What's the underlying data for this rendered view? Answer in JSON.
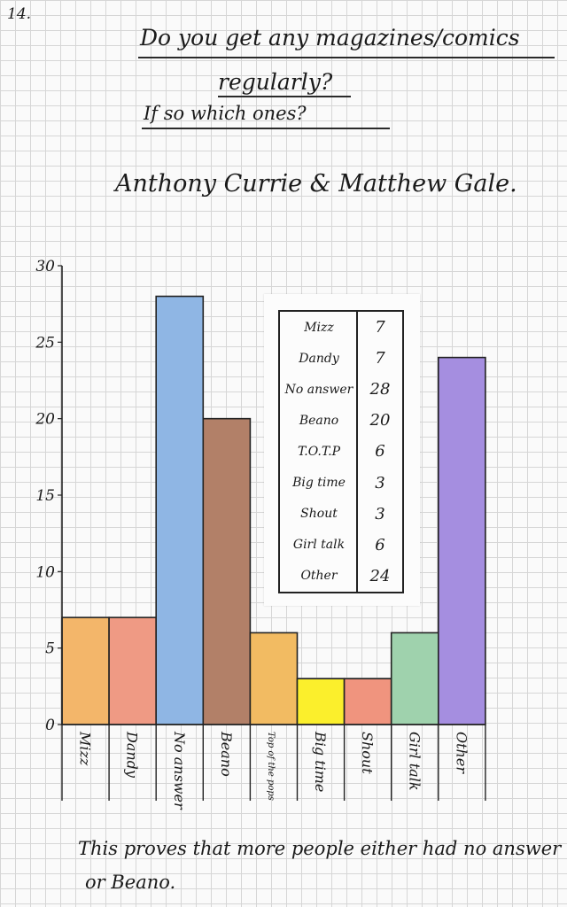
{
  "page_number": "14.",
  "question": {
    "line1": "Do you get any magazines/comics",
    "line2": "regularly?",
    "line3": "If so which ones?"
  },
  "authors": "Anthony Currie & Matthew Gale.",
  "table": [
    {
      "name": "Mizz",
      "value": "7"
    },
    {
      "name": "Dandy",
      "value": "7"
    },
    {
      "name": "No answer",
      "value": "28"
    },
    {
      "name": "Beano",
      "value": "20"
    },
    {
      "name": "T.O.T.P",
      "value": "6"
    },
    {
      "name": "Big time",
      "value": "3"
    },
    {
      "name": "Shout",
      "value": "3"
    },
    {
      "name": "Girl talk",
      "value": "6"
    },
    {
      "name": "Other",
      "value": "24"
    }
  ],
  "conclusion": {
    "line1": "This proves that more people either had no answer",
    "line2": "or Beano."
  },
  "chart_data": {
    "type": "bar",
    "categories": [
      "Mizz",
      "Dandy",
      "No answer",
      "Beano",
      "Top of the pops",
      "Big time",
      "Shout",
      "Girl talk",
      "Other"
    ],
    "values": [
      7,
      7,
      28,
      20,
      6,
      3,
      3,
      6,
      24
    ],
    "colors": [
      "#f3b66a",
      "#ef9a84",
      "#8fb6e4",
      "#b28068",
      "#f2bb62",
      "#fbef2c",
      "#f0947e",
      "#9fd2ad",
      "#a58ee0"
    ],
    "ylim": [
      0,
      30
    ],
    "yticks": [
      0,
      5,
      10,
      15,
      20,
      25,
      30
    ],
    "grid": true
  }
}
